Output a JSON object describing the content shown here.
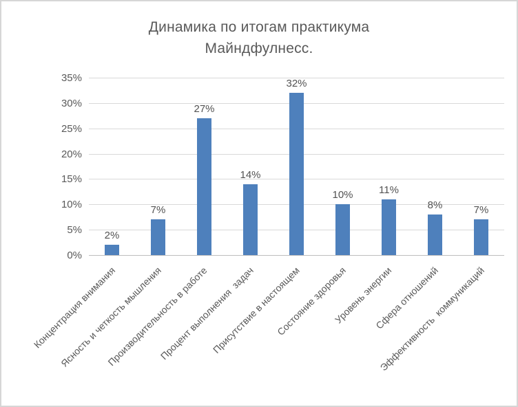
{
  "title_lines": [
    "Динамика по итогам практикума",
    "Майндфулнесс."
  ],
  "colors": {
    "bar": "#4e80bc",
    "gridline": "#d9d9d9",
    "axis_line": "#bdbdbd",
    "text": "#595959",
    "frame_border": "#d6d6d6",
    "background": "#ffffff"
  },
  "chart_data": {
    "type": "bar",
    "title": "Динамика по итогам практикума Майндфулнесс.",
    "categories": [
      "Концентрация внимания",
      "Ясность и четкость мышления",
      "Производительность в работе",
      "Процент выполнения  задач",
      "Присутствие в настоящем",
      "Состояние здоровья",
      "Уровень энергии",
      "Сфера отношений",
      "Эффективность  коммуникаций"
    ],
    "values": [
      2,
      7,
      27,
      14,
      32,
      10,
      11,
      8,
      7
    ],
    "data_labels": [
      "2%",
      "7%",
      "27%",
      "14%",
      "32%",
      "10%",
      "11%",
      "8%",
      "7%"
    ],
    "y_ticks": [
      "0%",
      "5%",
      "10%",
      "15%",
      "20%",
      "25%",
      "30%",
      "35%"
    ],
    "y_tick_values": [
      0,
      5,
      10,
      15,
      20,
      25,
      30,
      35
    ],
    "xlabel": "",
    "ylabel": "",
    "ylim": [
      0,
      35
    ],
    "grid": true,
    "legend": "none"
  }
}
